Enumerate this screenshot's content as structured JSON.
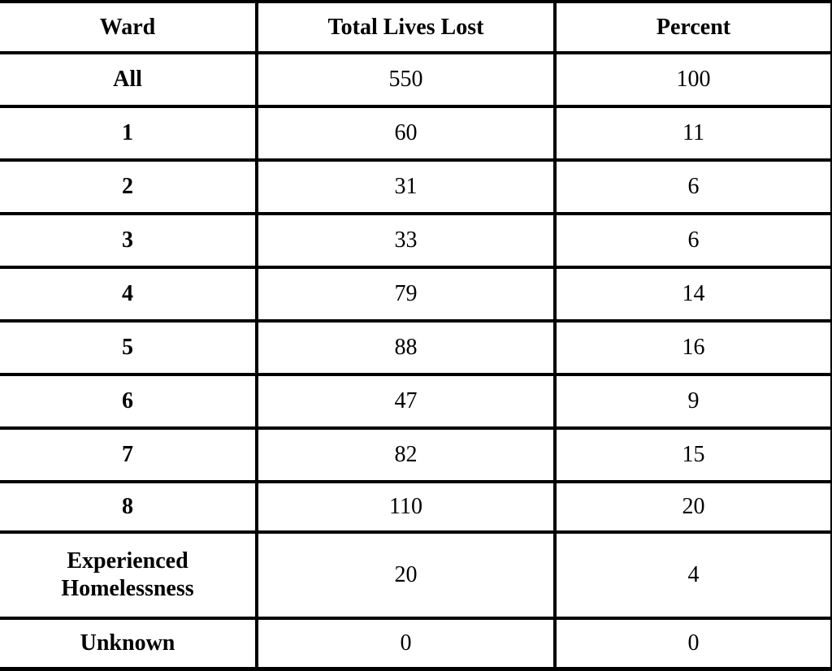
{
  "page": {
    "background_color": "#ffffff",
    "border_color": "#000000"
  },
  "table": {
    "columns": [
      {
        "id": "ward",
        "label": "Ward"
      },
      {
        "id": "total_lives_lost",
        "label": "Total Lives Lost"
      },
      {
        "id": "percent",
        "label": "Percent"
      }
    ],
    "rows": [
      {
        "ward": "All",
        "total_lives_lost": "550",
        "percent": "100"
      },
      {
        "ward": "1",
        "total_lives_lost": "60",
        "percent": "11"
      },
      {
        "ward": "2",
        "total_lives_lost": "31",
        "percent": "6"
      },
      {
        "ward": "3",
        "total_lives_lost": "33",
        "percent": "6"
      },
      {
        "ward": "4",
        "total_lives_lost": "79",
        "percent": "14"
      },
      {
        "ward": "5",
        "total_lives_lost": "88",
        "percent": "16"
      },
      {
        "ward": "6",
        "total_lives_lost": "47",
        "percent": "9"
      },
      {
        "ward": "7",
        "total_lives_lost": "82",
        "percent": "15"
      },
      {
        "ward": "8",
        "total_lives_lost": "110",
        "percent": "20"
      },
      {
        "ward": "Experienced Homelessness",
        "total_lives_lost": "20",
        "percent": "4"
      },
      {
        "ward": "Unknown",
        "total_lives_lost": "0",
        "percent": "0"
      }
    ]
  },
  "chart_data": {
    "type": "table",
    "columns": [
      "Ward",
      "Total Lives Lost",
      "Percent"
    ],
    "rows": [
      [
        "All",
        550,
        100
      ],
      [
        "1",
        60,
        11
      ],
      [
        "2",
        31,
        6
      ],
      [
        "3",
        33,
        6
      ],
      [
        "4",
        79,
        14
      ],
      [
        "5",
        88,
        16
      ],
      [
        "6",
        47,
        9
      ],
      [
        "7",
        82,
        15
      ],
      [
        "8",
        110,
        20
      ],
      [
        "Experienced Homelessness",
        20,
        4
      ],
      [
        "Unknown",
        0,
        0
      ]
    ]
  }
}
